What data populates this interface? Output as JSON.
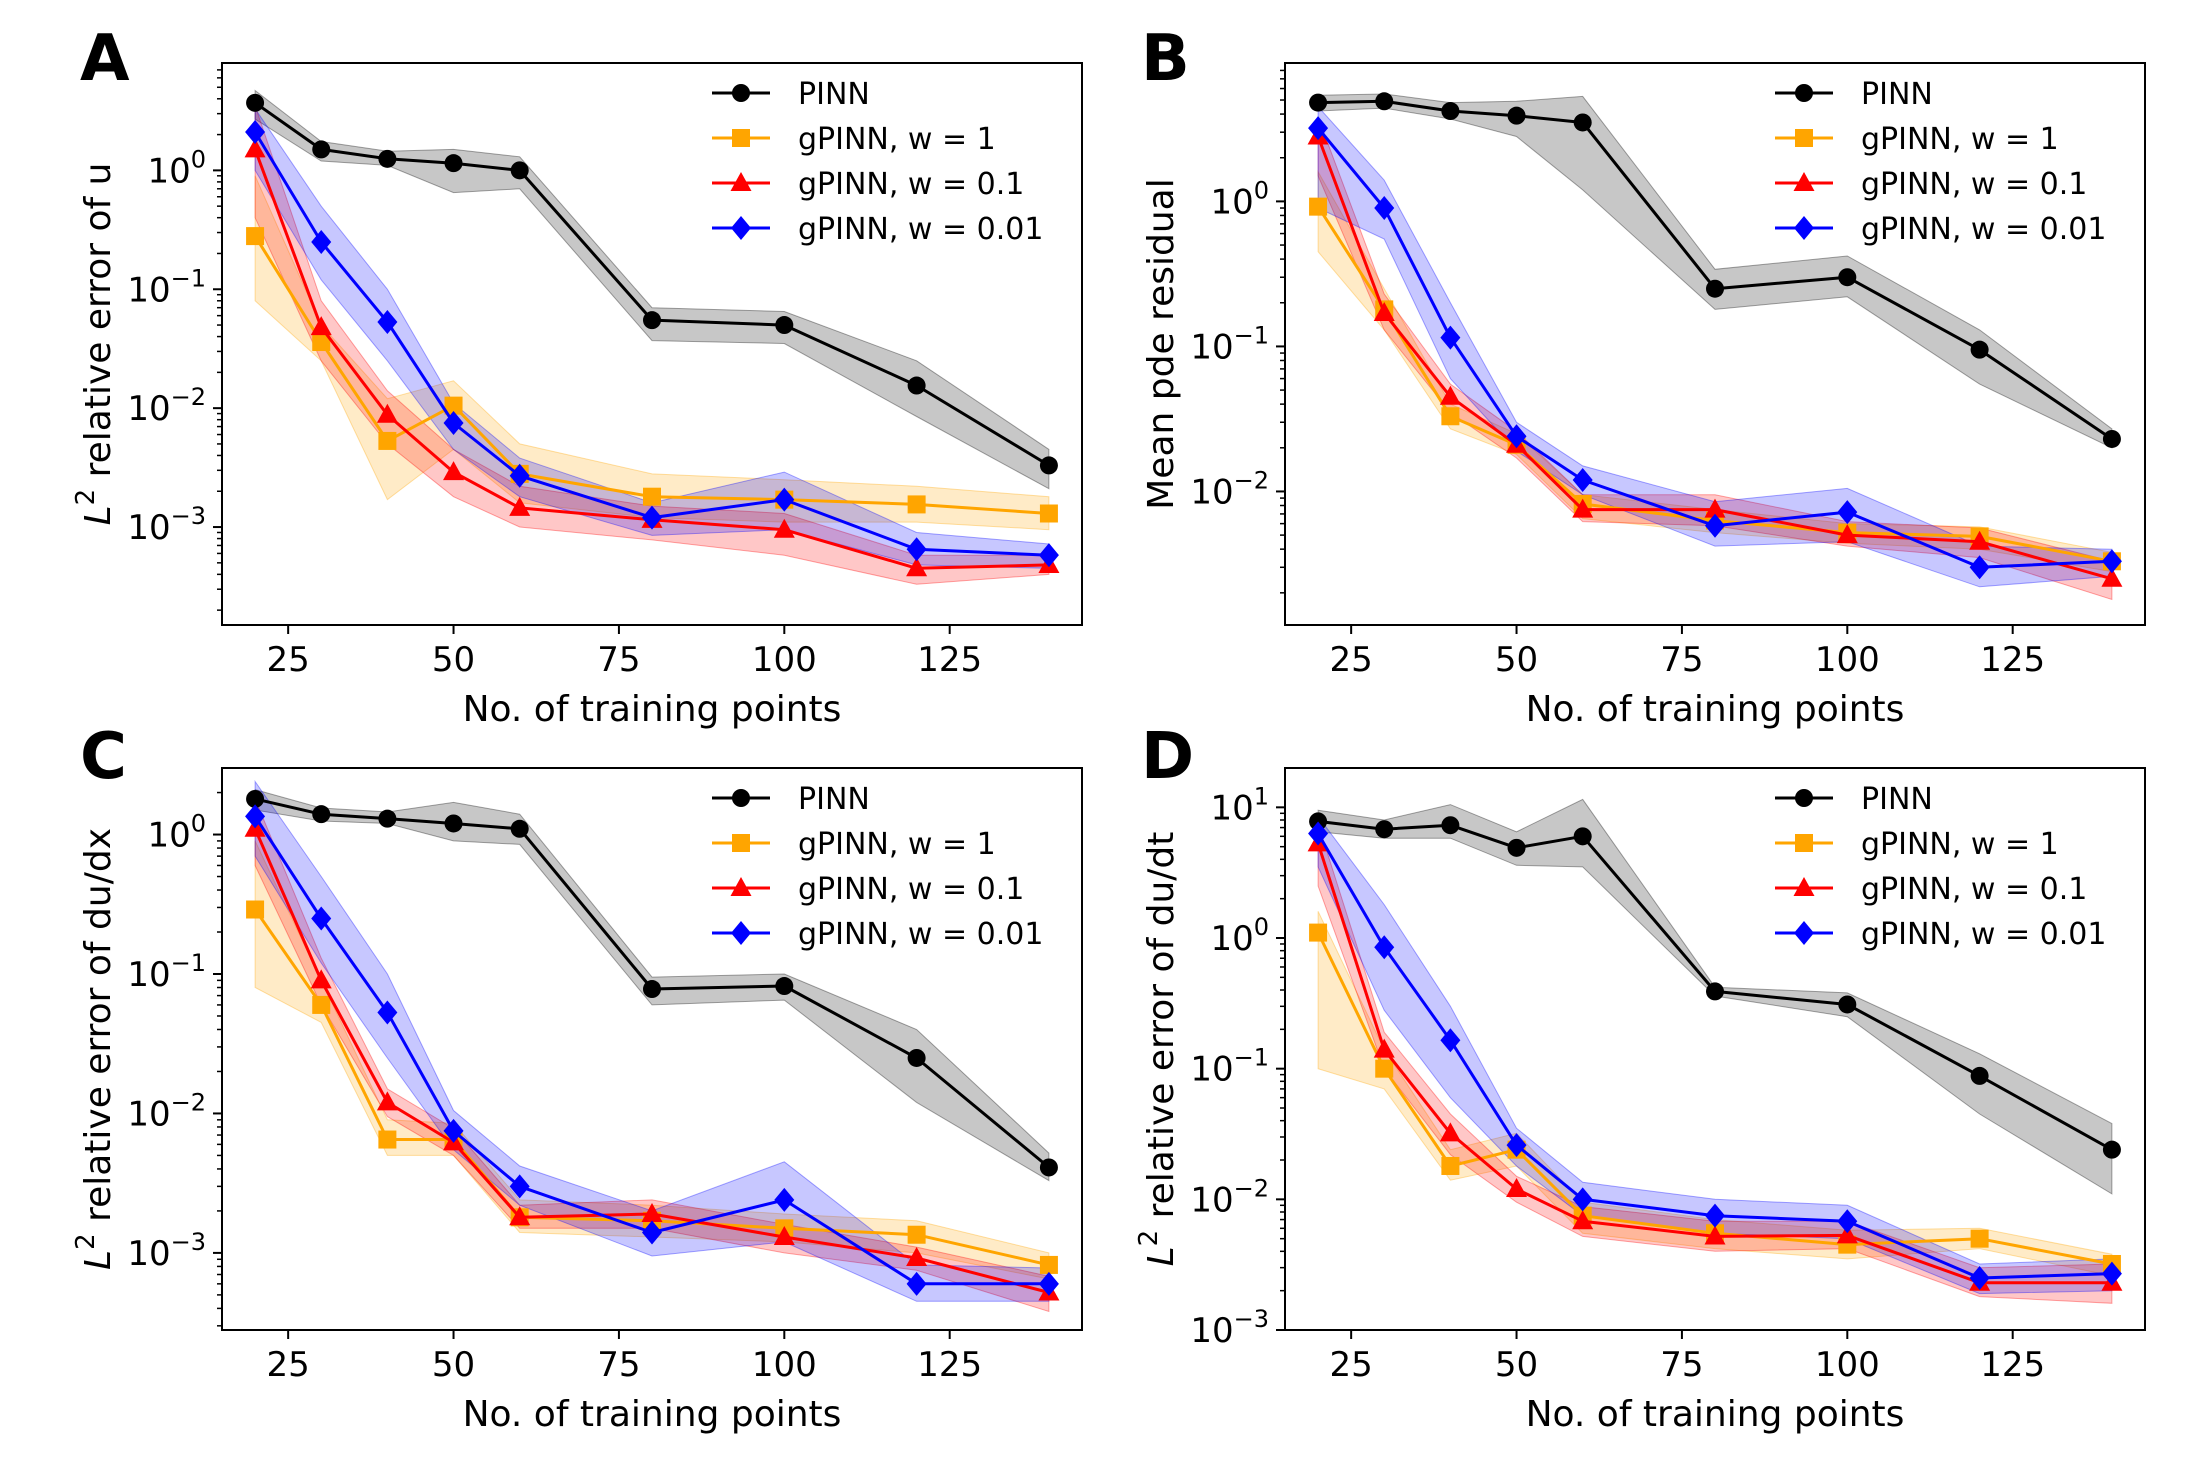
{
  "legend": [
    {
      "name": "PINN",
      "color": "#000000",
      "marker": "circle"
    },
    {
      "name": "gPINN, w = 1",
      "color": "#FFA500",
      "marker": "square"
    },
    {
      "name": "gPINN, w = 0.1",
      "color": "#FF0000",
      "marker": "triangle"
    },
    {
      "name": "gPINN, w = 0.01",
      "color": "#0000FF",
      "marker": "diamond"
    }
  ],
  "chart_data": [
    {
      "panel": "A",
      "type": "line",
      "xlabel": "No. of training points",
      "ylabel_prefix": "L",
      "ylabel_sup": "2",
      "ylabel_rest": " relative error of u",
      "yscale": "log",
      "xlim": [
        15,
        145
      ],
      "ylim": [
        0.00015,
        8
      ],
      "xticks": [
        25,
        50,
        75,
        100,
        125
      ],
      "yticks": [
        {
          "exp": 0
        },
        {
          "exp": -1
        },
        {
          "exp": -2
        },
        {
          "exp": -3
        }
      ],
      "legend_position": "top-right",
      "x": [
        20,
        30,
        40,
        50,
        60,
        80,
        100,
        120,
        140
      ],
      "series": [
        {
          "name": "PINN",
          "values": [
            3.7,
            1.5,
            1.25,
            1.15,
            1.0,
            0.055,
            0.05,
            0.0155,
            0.0033
          ],
          "band_lo": [
            2.7,
            1.2,
            1.1,
            0.65,
            0.7,
            0.037,
            0.035,
            0.0085,
            0.0021
          ],
          "band_hi": [
            4.7,
            1.75,
            1.45,
            1.5,
            1.3,
            0.07,
            0.065,
            0.025,
            0.0045
          ]
        },
        {
          "name": "gPINN, w = 1",
          "values": [
            0.28,
            0.036,
            0.0053,
            0.0105,
            0.0028,
            0.0018,
            0.0017,
            0.00155,
            0.0013
          ],
          "band_lo": [
            0.08,
            0.025,
            0.0017,
            0.0045,
            0.0016,
            0.0012,
            0.0011,
            0.0011,
            0.00095
          ],
          "band_hi": [
            0.9,
            0.05,
            0.012,
            0.017,
            0.005,
            0.0028,
            0.0025,
            0.0022,
            0.0018
          ]
        },
        {
          "name": "gPINN, w = 0.1",
          "values": [
            1.5,
            0.048,
            0.0088,
            0.0029,
            0.00145,
            0.00115,
            0.00095,
            0.00045,
            0.00048
          ],
          "band_lo": [
            0.4,
            0.025,
            0.005,
            0.0018,
            0.001,
            0.00078,
            0.00058,
            0.00033,
            0.0004
          ],
          "band_hi": [
            3.5,
            0.08,
            0.014,
            0.0045,
            0.0022,
            0.0015,
            0.0013,
            0.00058,
            0.00058
          ]
        },
        {
          "name": "gPINN, w = 0.01",
          "values": [
            2.1,
            0.25,
            0.053,
            0.0075,
            0.0027,
            0.0012,
            0.0017,
            0.00065,
            0.00058
          ],
          "band_lo": [
            1.0,
            0.12,
            0.025,
            0.0045,
            0.0018,
            0.00085,
            0.00095,
            0.00048,
            0.00045
          ],
          "band_hi": [
            3.3,
            0.5,
            0.1,
            0.011,
            0.0038,
            0.0016,
            0.0029,
            0.0009,
            0.00072
          ]
        }
      ]
    },
    {
      "panel": "B",
      "type": "line",
      "xlabel": "No. of training points",
      "ylabel_prefix": "",
      "ylabel_sup": "",
      "ylabel_rest": "Mean pde residual",
      "yscale": "log",
      "xlim": [
        15,
        145
      ],
      "ylim": [
        0.0012,
        9
      ],
      "xticks": [
        25,
        50,
        75,
        100,
        125
      ],
      "yticks": [
        {
          "exp": 0
        },
        {
          "exp": -1
        },
        {
          "exp": -2
        }
      ],
      "legend_position": "top-right",
      "x": [
        20,
        30,
        40,
        50,
        60,
        80,
        100,
        120,
        140
      ],
      "series": [
        {
          "name": "PINN",
          "values": [
            4.8,
            4.9,
            4.2,
            3.9,
            3.5,
            0.25,
            0.3,
            0.095,
            0.023
          ],
          "band_lo": [
            4.2,
            4.4,
            3.7,
            2.8,
            1.2,
            0.18,
            0.22,
            0.055,
            0.02
          ],
          "band_hi": [
            5.4,
            5.5,
            4.8,
            4.9,
            5.3,
            0.34,
            0.42,
            0.13,
            0.027
          ]
        },
        {
          "name": "gPINN, w = 1",
          "values": [
            0.92,
            0.18,
            0.033,
            0.021,
            0.0082,
            0.0063,
            0.0052,
            0.0049,
            0.0033
          ],
          "band_lo": [
            0.45,
            0.13,
            0.027,
            0.018,
            0.0065,
            0.0052,
            0.0044,
            0.004,
            0.0028
          ],
          "band_hi": [
            1.6,
            0.25,
            0.04,
            0.025,
            0.0095,
            0.0075,
            0.006,
            0.0057,
            0.0038
          ]
        },
        {
          "name": "gPINN, w = 0.1",
          "values": [
            2.8,
            0.17,
            0.045,
            0.021,
            0.0075,
            0.0075,
            0.005,
            0.0045,
            0.0025
          ],
          "band_lo": [
            1.5,
            0.13,
            0.035,
            0.017,
            0.0062,
            0.0058,
            0.0042,
            0.0035,
            0.0018
          ],
          "band_hi": [
            3.8,
            0.23,
            0.055,
            0.026,
            0.0095,
            0.0095,
            0.0062,
            0.0056,
            0.0033
          ]
        },
        {
          "name": "gPINN, w = 0.01",
          "values": [
            3.2,
            0.9,
            0.115,
            0.024,
            0.012,
            0.0058,
            0.0072,
            0.003,
            0.0033
          ],
          "band_lo": [
            0.9,
            0.55,
            0.06,
            0.019,
            0.0095,
            0.0042,
            0.0045,
            0.0022,
            0.0026
          ],
          "band_hi": [
            4.5,
            1.4,
            0.2,
            0.03,
            0.015,
            0.0085,
            0.0105,
            0.0042,
            0.004
          ]
        }
      ]
    },
    {
      "panel": "C",
      "type": "line",
      "xlabel": "No. of training points",
      "ylabel_prefix": "L",
      "ylabel_sup": "2",
      "ylabel_rest": " relative error of du/dx",
      "yscale": "log",
      "xlim": [
        15,
        145
      ],
      "ylim": [
        0.00028,
        3
      ],
      "xticks": [
        25,
        50,
        75,
        100,
        125
      ],
      "yticks": [
        {
          "exp": 0
        },
        {
          "exp": -1
        },
        {
          "exp": -2
        },
        {
          "exp": -3
        }
      ],
      "legend_position": "top-right",
      "x": [
        20,
        30,
        40,
        50,
        60,
        80,
        100,
        120,
        140
      ],
      "series": [
        {
          "name": "PINN",
          "values": [
            1.8,
            1.4,
            1.3,
            1.2,
            1.1,
            0.078,
            0.082,
            0.025,
            0.0041
          ],
          "band_lo": [
            1.5,
            1.25,
            1.2,
            0.9,
            0.85,
            0.06,
            0.065,
            0.012,
            0.0033
          ],
          "band_hi": [
            2.1,
            1.55,
            1.45,
            1.7,
            1.4,
            0.095,
            0.1,
            0.04,
            0.0052
          ]
        },
        {
          "name": "gPINN, w = 1",
          "values": [
            0.29,
            0.06,
            0.0065,
            0.0065,
            0.0018,
            0.0017,
            0.0015,
            0.00135,
            0.00082
          ],
          "band_lo": [
            0.08,
            0.045,
            0.005,
            0.005,
            0.0014,
            0.0013,
            0.0012,
            0.001,
            0.00065
          ],
          "band_hi": [
            0.9,
            0.09,
            0.009,
            0.0085,
            0.0024,
            0.0022,
            0.0019,
            0.0017,
            0.001
          ]
        },
        {
          "name": "gPINN, w = 0.1",
          "values": [
            1.1,
            0.09,
            0.012,
            0.0062,
            0.0018,
            0.0019,
            0.0013,
            0.00092,
            0.00052
          ],
          "band_lo": [
            0.6,
            0.06,
            0.0095,
            0.005,
            0.0015,
            0.0015,
            0.001,
            0.00075,
            0.00038
          ],
          "band_hi": [
            1.8,
            0.13,
            0.015,
            0.0078,
            0.0022,
            0.0024,
            0.0016,
            0.0011,
            0.00068
          ]
        },
        {
          "name": "gPINN, w = 0.01",
          "values": [
            1.35,
            0.25,
            0.053,
            0.0075,
            0.003,
            0.0014,
            0.0024,
            0.0006,
            0.0006
          ],
          "band_lo": [
            0.7,
            0.12,
            0.025,
            0.0055,
            0.0022,
            0.00095,
            0.0012,
            0.00045,
            0.00045
          ],
          "band_hi": [
            2.4,
            0.5,
            0.1,
            0.0105,
            0.0042,
            0.002,
            0.0045,
            0.00082,
            0.00078
          ]
        }
      ]
    },
    {
      "panel": "D",
      "type": "line",
      "xlabel": "No. of training points",
      "ylabel_prefix": "L",
      "ylabel_sup": "2",
      "ylabel_rest": " relative error of du/dt",
      "yscale": "log",
      "xlim": [
        15,
        145
      ],
      "ylim": [
        0.001,
        20
      ],
      "xticks": [
        25,
        50,
        75,
        100,
        125
      ],
      "yticks": [
        {
          "exp": 1
        },
        {
          "exp": 0
        },
        {
          "exp": -1
        },
        {
          "exp": -2
        },
        {
          "exp": -3
        }
      ],
      "legend_position": "top-right",
      "x": [
        20,
        30,
        40,
        50,
        60,
        80,
        100,
        120,
        140
      ],
      "series": [
        {
          "name": "PINN",
          "values": [
            7.8,
            6.8,
            7.3,
            4.9,
            6.0,
            0.39,
            0.31,
            0.088,
            0.024
          ],
          "band_lo": [
            6.5,
            5.8,
            5.8,
            3.6,
            3.5,
            0.36,
            0.25,
            0.045,
            0.011
          ],
          "band_hi": [
            9.5,
            8.0,
            10.5,
            6.5,
            11.5,
            0.42,
            0.38,
            0.13,
            0.038
          ]
        },
        {
          "name": "gPINN, w = 1",
          "values": [
            1.1,
            0.1,
            0.018,
            0.024,
            0.0075,
            0.0055,
            0.0045,
            0.005,
            0.0032
          ],
          "band_lo": [
            0.1,
            0.07,
            0.014,
            0.018,
            0.0055,
            0.0042,
            0.0035,
            0.0042,
            0.0026
          ],
          "band_hi": [
            1.6,
            0.14,
            0.024,
            0.032,
            0.0095,
            0.007,
            0.0058,
            0.006,
            0.0038
          ]
        },
        {
          "name": "gPINN, w = 0.1",
          "values": [
            5.3,
            0.14,
            0.032,
            0.012,
            0.0068,
            0.0052,
            0.0053,
            0.0023,
            0.0023
          ],
          "band_lo": [
            2.5,
            0.1,
            0.022,
            0.0095,
            0.0052,
            0.004,
            0.0042,
            0.0018,
            0.0016
          ],
          "band_hi": [
            7.5,
            0.19,
            0.045,
            0.015,
            0.0088,
            0.0068,
            0.0068,
            0.003,
            0.0032
          ]
        },
        {
          "name": "gPINN, w = 0.01",
          "values": [
            6.3,
            0.85,
            0.165,
            0.026,
            0.01,
            0.0075,
            0.0068,
            0.0025,
            0.0027
          ],
          "band_lo": [
            3.5,
            0.28,
            0.06,
            0.018,
            0.0075,
            0.0055,
            0.005,
            0.0019,
            0.002
          ],
          "band_hi": [
            8.5,
            1.8,
            0.3,
            0.035,
            0.0135,
            0.01,
            0.009,
            0.0032,
            0.0035
          ]
        }
      ]
    }
  ]
}
